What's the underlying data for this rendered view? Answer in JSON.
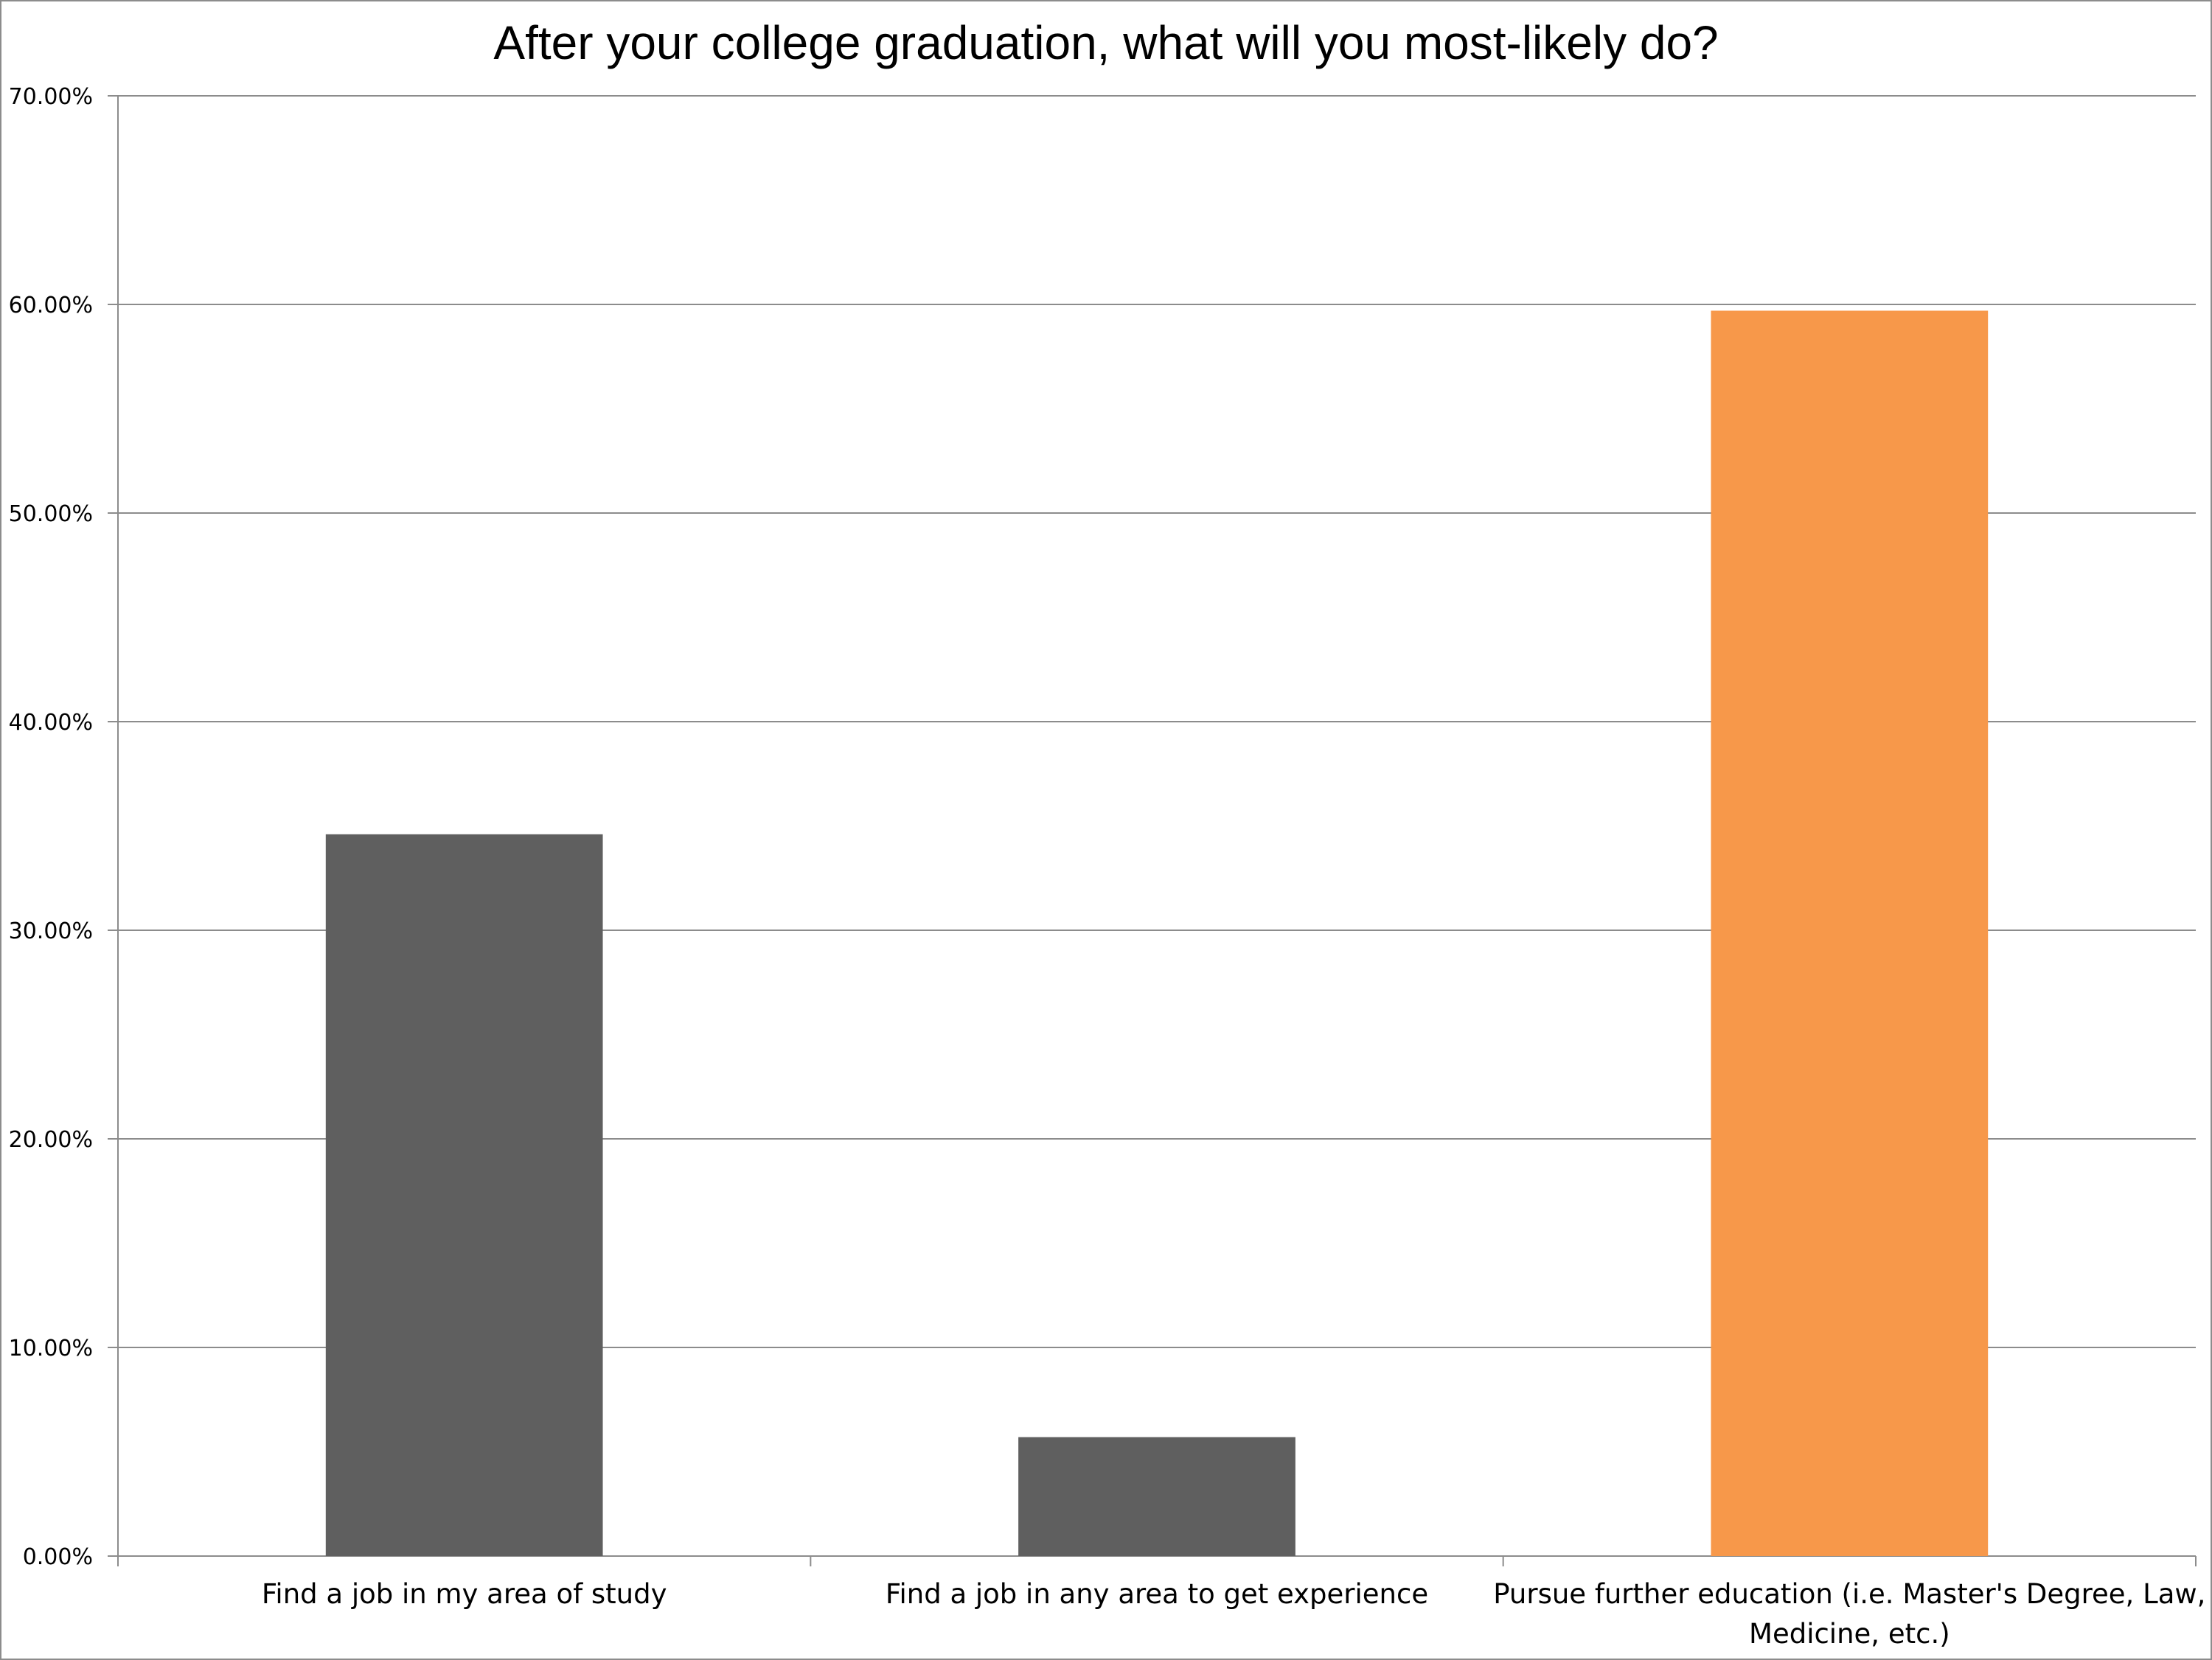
{
  "chart_data": {
    "type": "bar",
    "title": "After your college graduation, what will you most-likely do?",
    "xlabel": "",
    "ylabel": "",
    "categories": [
      [
        "Find a job in my area of study"
      ],
      [
        "Find a job in any area to get experience"
      ],
      [
        "Pursue further education (i.e. Master's Degree, Law,",
        "Medicine, etc.)"
      ]
    ],
    "values": [
      34.6,
      5.7,
      59.7
    ],
    "bar_colors": [
      "#5f5f5f",
      "#5f5f5f",
      "#f7984a"
    ],
    "ylim": [
      0,
      70
    ],
    "yticks": [
      "0.00%",
      "10.00%",
      "20.00%",
      "30.00%",
      "40.00%",
      "50.00%",
      "60.00%",
      "70.00%"
    ],
    "grid": true,
    "legend": "none"
  },
  "colors": {
    "gridline": "#8c8c8c",
    "axis": "#8c8c8c",
    "background": "#ffffff"
  }
}
